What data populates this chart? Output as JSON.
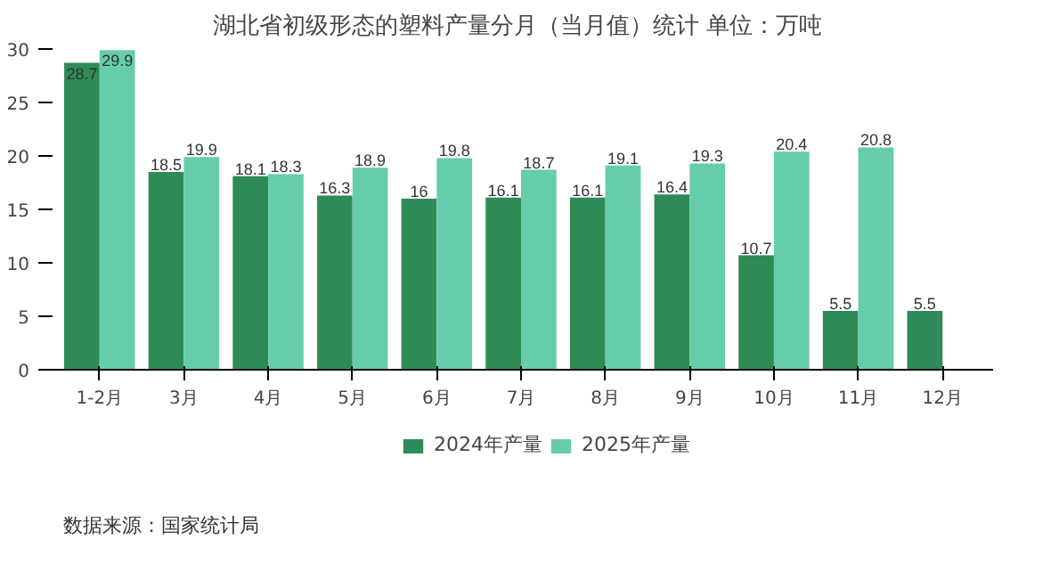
{
  "chart_data": {
    "type": "bar",
    "title": "湖北省初级形态的塑料产量分月（当月值）统计  单位：万吨",
    "categories": [
      "1-2月",
      "3月",
      "4月",
      "5月",
      "6月",
      "7月",
      "8月",
      "9月",
      "10月",
      "11月",
      "12月"
    ],
    "series": [
      {
        "name": "2024年产量",
        "color": "#2e8b57",
        "values": [
          28.7,
          18.5,
          18.1,
          16.3,
          16,
          16.1,
          16.1,
          16.4,
          10.7,
          5.5,
          5.5
        ]
      },
      {
        "name": "2025年产量",
        "color": "#66cdaa",
        "values": [
          29.9,
          19.9,
          18.3,
          18.9,
          19.8,
          18.7,
          19.1,
          19.3,
          20.4,
          20.8,
          null
        ]
      }
    ],
    "ylim": [
      0,
      30
    ],
    "yticks": [
      0,
      5,
      10,
      15,
      20,
      25,
      30
    ],
    "grid": false,
    "legend": "bottom",
    "data_labels": true,
    "annotations": [
      "数据来源：国家统计局"
    ]
  }
}
